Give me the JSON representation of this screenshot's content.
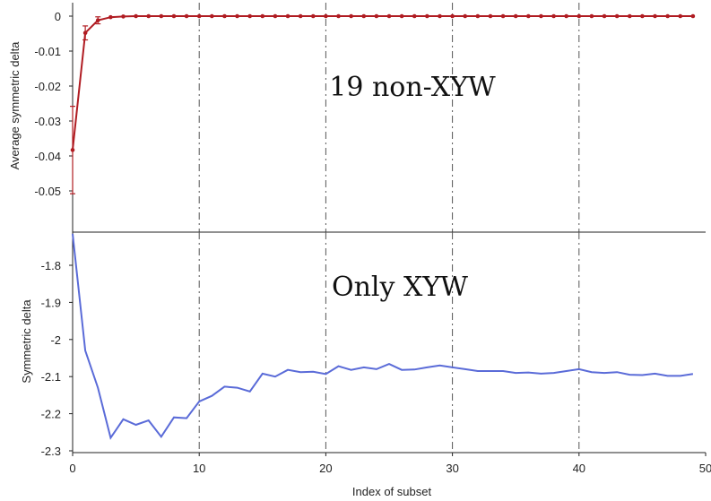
{
  "chart_data": [
    {
      "type": "line",
      "annotation": "19 non-XYW",
      "xlabel": "",
      "ylabel": "Average symmetric delta",
      "xlim": [
        0,
        50
      ],
      "ylim": [
        -0.058,
        0.002
      ],
      "yticks": [
        0,
        -0.01,
        -0.02,
        -0.03,
        -0.04,
        -0.05
      ],
      "ytick_labels": [
        "0",
        "-0.01",
        "-0.02",
        "-0.03",
        "-0.04",
        "-0.05"
      ],
      "grid": "dashed vertical lines at x = 10, 20, 30, 40",
      "color": "#b01c22",
      "markers": true,
      "error_bars": true,
      "series": [
        {
          "x": [
            0,
            1,
            2,
            3,
            4,
            5,
            6,
            7,
            8,
            9,
            10,
            11,
            12,
            13,
            14,
            15,
            16,
            17,
            18,
            19,
            20,
            21,
            22,
            23,
            24,
            25,
            26,
            27,
            28,
            29,
            30,
            31,
            32,
            33,
            34,
            35,
            36,
            37,
            38,
            39,
            40,
            41,
            42,
            43,
            44,
            45,
            46,
            47,
            48,
            49
          ],
          "values": [
            -0.0383,
            -0.0048,
            -0.0012,
            -0.0003,
            -0.0001,
            0,
            0,
            0,
            0,
            0,
            0,
            0,
            0,
            0,
            0,
            0,
            0,
            0,
            0,
            0,
            0,
            0,
            0,
            0,
            0,
            0,
            0,
            0,
            0,
            0,
            0,
            0,
            0,
            0,
            0,
            0,
            0,
            0,
            0,
            0,
            0,
            0,
            0,
            0,
            0,
            0,
            0,
            0,
            0,
            0
          ],
          "error": [
            0.0125,
            0.002,
            0.001,
            0,
            0,
            0,
            0,
            0,
            0,
            0,
            0,
            0,
            0,
            0,
            0,
            0,
            0,
            0,
            0,
            0,
            0,
            0,
            0,
            0,
            0,
            0,
            0,
            0,
            0,
            0,
            0,
            0,
            0,
            0,
            0,
            0,
            0,
            0,
            0,
            0,
            0,
            0,
            0,
            0,
            0,
            0,
            0,
            0,
            0,
            0
          ]
        }
      ]
    },
    {
      "type": "line",
      "annotation": "Only XYW",
      "xlabel": "Index of subset",
      "ylabel": "Symmetric delta",
      "xlim": [
        0,
        50
      ],
      "ylim": [
        -2.3,
        -1.71
      ],
      "yticks": [
        -1.8,
        -1.9,
        -2,
        -2.1,
        -2.2,
        -2.3
      ],
      "ytick_labels": [
        "-1.8",
        "-1.9",
        "-2",
        "-2.1",
        "-2.2",
        "-2.3"
      ],
      "xticks": [
        0,
        10,
        20,
        30,
        40,
        50
      ],
      "xtick_labels": [
        "0",
        "10",
        "20",
        "30",
        "40",
        "50"
      ],
      "grid": "dashed vertical lines at x = 10, 20, 30, 40",
      "color": "#5a6bd8",
      "series": [
        {
          "x": [
            0,
            1,
            2,
            3,
            4,
            5,
            6,
            7,
            8,
            9,
            10,
            11,
            12,
            13,
            14,
            15,
            16,
            17,
            18,
            19,
            20,
            21,
            22,
            23,
            24,
            25,
            26,
            27,
            28,
            29,
            30,
            31,
            32,
            33,
            34,
            35,
            36,
            37,
            38,
            39,
            40,
            41,
            42,
            43,
            44,
            45,
            46,
            47,
            48,
            49
          ],
          "values": [
            -1.715,
            -2.03,
            -2.13,
            -2.265,
            -2.215,
            -2.23,
            -2.218,
            -2.262,
            -2.21,
            -2.212,
            -2.167,
            -2.152,
            -2.127,
            -2.13,
            -2.14,
            -2.092,
            -2.1,
            -2.082,
            -2.088,
            -2.087,
            -2.093,
            -2.072,
            -2.082,
            -2.075,
            -2.08,
            -2.066,
            -2.082,
            -2.081,
            -2.075,
            -2.07,
            -2.075,
            -2.08,
            -2.085,
            -2.085,
            -2.085,
            -2.09,
            -2.089,
            -2.092,
            -2.09,
            -2.085,
            -2.08,
            -2.088,
            -2.09,
            -2.088,
            -2.095,
            -2.096,
            -2.092,
            -2.098,
            -2.098,
            -2.093
          ]
        }
      ]
    }
  ]
}
